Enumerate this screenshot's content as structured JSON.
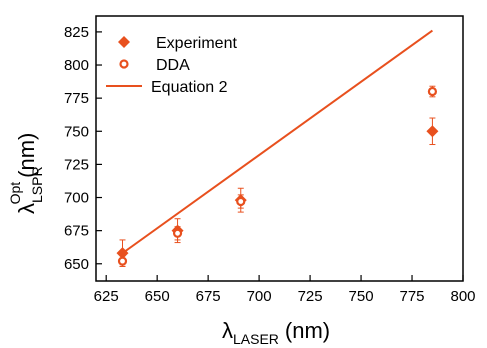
{
  "chart_data": {
    "type": "scatter",
    "title": "",
    "xlabel": {
      "symbol": "λ",
      "sub": "LASER",
      "unit": "(nm)"
    },
    "ylabel": {
      "symbol": "λ",
      "sub": "LSPR",
      "sup": "Opt",
      "unit": "(nm)"
    },
    "xlim": [
      620,
      800
    ],
    "ylim": [
      637,
      837
    ],
    "xticks": [
      "625",
      "650",
      "675",
      "700",
      "725",
      "750",
      "775",
      "800"
    ],
    "yticks": [
      "650",
      "675",
      "700",
      "725",
      "750",
      "775",
      "800",
      "825"
    ],
    "legend_position": "top-left",
    "grid": false,
    "color": "#e8501e",
    "series": [
      {
        "name": "Experiment",
        "marker": "filled-diamond",
        "points": [
          {
            "x": 633,
            "y": 658,
            "err": 10
          },
          {
            "x": 660,
            "y": 675,
            "err": 9
          },
          {
            "x": 691,
            "y": 698,
            "err": 9
          },
          {
            "x": 785,
            "y": 750,
            "err": 10
          }
        ]
      },
      {
        "name": "DDA",
        "marker": "open-circle",
        "points": [
          {
            "x": 633,
            "y": 652,
            "err": 4
          },
          {
            "x": 660,
            "y": 673,
            "err": 5
          },
          {
            "x": 691,
            "y": 697,
            "err": 5
          },
          {
            "x": 785,
            "y": 780,
            "err": 4
          }
        ]
      },
      {
        "name": "Equation 2",
        "marker": "line",
        "points": [
          {
            "x": 633,
            "y": 658
          },
          {
            "x": 785,
            "y": 826
          }
        ]
      }
    ]
  }
}
